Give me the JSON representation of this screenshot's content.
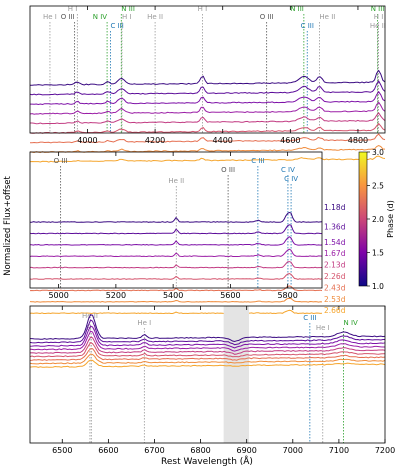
{
  "chart_data": {
    "type": "line",
    "ylabel": "Normalized Flux+offset",
    "xlabel": "Rest Wavelength (Å)",
    "colorbar": {
      "label": "Phase (d)",
      "range": [
        1.0,
        3.0
      ],
      "ticks": [
        "1.0",
        "1.5",
        "2.0",
        "2.5",
        "3.0"
      ]
    },
    "spectra": [
      {
        "label": "1.18d",
        "phase": 1.18,
        "color": "#3a0a82"
      },
      {
        "label": "1.36d",
        "phase": 1.36,
        "color": "#5c0d9a"
      },
      {
        "label": "1.54d",
        "phase": 1.54,
        "color": "#7e12a8"
      },
      {
        "label": "1.67d",
        "phase": 1.67,
        "color": "#9b1ea6"
      },
      {
        "label": "2.13d",
        "phase": 2.13,
        "color": "#c23b82"
      },
      {
        "label": "2.26d",
        "phase": 2.26,
        "color": "#d4536c"
      },
      {
        "label": "2.43d",
        "phase": 2.43,
        "color": "#e56f51"
      },
      {
        "label": "2.53d",
        "phase": 2.53,
        "color": "#ef8b3c"
      },
      {
        "label": "2.66d",
        "phase": 2.66,
        "color": "#f5a52d"
      }
    ],
    "panels": [
      {
        "xlim": [
          3830,
          4880
        ],
        "xticks": [
          "4000",
          "4200",
          "4400",
          "4600",
          "4800"
        ],
        "lines": [
          {
            "ion": "He I",
            "wavelength": 3889,
            "color": "#999999"
          },
          {
            "ion": "H I",
            "wavelength": 3970,
            "color": "#999999"
          },
          {
            "ion": "O III",
            "wavelength": 3962,
            "color": "#555555"
          },
          {
            "ion": "N IV",
            "wavelength": 4058,
            "color": "#2ca02c"
          },
          {
            "ion": "C III",
            "wavelength": 4068,
            "color": "#1f77b4"
          },
          {
            "ion": "N III",
            "wavelength": 4100,
            "color": "#2ca02c"
          },
          {
            "ion": "H I",
            "wavelength": 4102,
            "color": "#999999"
          },
          {
            "ion": "He II",
            "wavelength": 4200,
            "color": "#999999"
          },
          {
            "ion": "H I",
            "wavelength": 4340,
            "color": "#999999"
          },
          {
            "ion": "O III",
            "wavelength": 4530,
            "color": "#555555"
          },
          {
            "ion": "N III",
            "wavelength": 4640,
            "color": "#2ca02c"
          },
          {
            "ion": "C III",
            "wavelength": 4650,
            "color": "#1f77b4"
          },
          {
            "ion": "He II",
            "wavelength": 4686,
            "color": "#999999"
          },
          {
            "ion": "N III",
            "wavelength": 4858,
            "color": "#2ca02c"
          },
          {
            "ion": "H I",
            "wavelength": 4861,
            "color": "#999999"
          },
          {
            "ion": "He II",
            "wavelength": 4859,
            "color": "#999999"
          }
        ]
      },
      {
        "xlim": [
          4900,
          5920
        ],
        "xticks": [
          "5000",
          "5200",
          "5400",
          "5600",
          "5800"
        ],
        "lines": [
          {
            "ion": "O III",
            "wavelength": 5007,
            "color": "#555555"
          },
          {
            "ion": "He II",
            "wavelength": 5411,
            "color": "#999999"
          },
          {
            "ion": "O III",
            "wavelength": 5592,
            "color": "#555555"
          },
          {
            "ion": "C III",
            "wavelength": 5696,
            "color": "#1f77b4"
          },
          {
            "ion": "C IV",
            "wavelength": 5801,
            "color": "#1f77b4"
          },
          {
            "ion": "C IV",
            "wavelength": 5812,
            "color": "#1f77b4"
          }
        ]
      },
      {
        "xlim": [
          6430,
          7200
        ],
        "xticks": [
          "6500",
          "6600",
          "6700",
          "6800",
          "6900",
          "7000",
          "7100",
          "7200"
        ],
        "shaded": [
          6850,
          6905
        ],
        "lines": [
          {
            "ion": "He II",
            "wavelength": 6560,
            "color": "#999999"
          },
          {
            "ion": "H I",
            "wavelength": 6563,
            "color": "#999999"
          },
          {
            "ion": "He I",
            "wavelength": 6678,
            "color": "#999999"
          },
          {
            "ion": "C III",
            "wavelength": 7037,
            "color": "#1f77b4"
          },
          {
            "ion": "He I",
            "wavelength": 7065,
            "color": "#999999"
          },
          {
            "ion": "N IV",
            "wavelength": 7110,
            "color": "#2ca02c"
          }
        ]
      }
    ]
  }
}
